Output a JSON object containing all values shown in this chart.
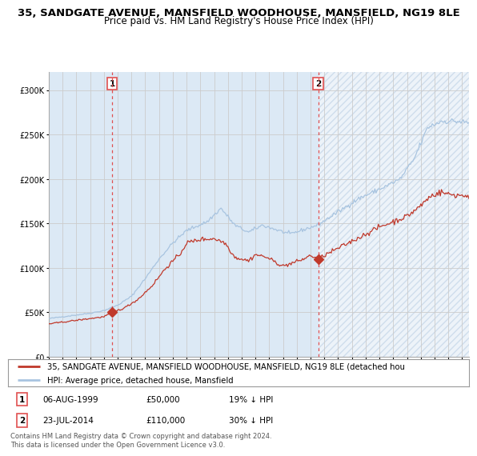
{
  "title_line1": "35, SANDGATE AVENUE, MANSFIELD WOODHOUSE, MANSFIELD, NG19 8LE",
  "title_line2": "Price paid vs. HM Land Registry's House Price Index (HPI)",
  "legend_line1": "35, SANDGATE AVENUE, MANSFIELD WOODHOUSE, MANSFIELD, NG19 8LE (detached hou",
  "legend_line2": "HPI: Average price, detached house, Mansfield",
  "annotation1_date": "06-AUG-1999",
  "annotation1_price": "£50,000",
  "annotation1_hpi": "19% ↓ HPI",
  "annotation2_date": "23-JUL-2014",
  "annotation2_price": "£110,000",
  "annotation2_hpi": "30% ↓ HPI",
  "sale1_year": 1999.6,
  "sale1_price": 50000,
  "sale2_year": 2014.55,
  "sale2_price": 110000,
  "ylabel_ticks": [
    0,
    50000,
    100000,
    150000,
    200000,
    250000,
    300000
  ],
  "ylabel_labels": [
    "£0",
    "£50K",
    "£100K",
    "£150K",
    "£200K",
    "£250K",
    "£300K"
  ],
  "xmin": 1995.0,
  "xmax": 2025.5,
  "ymin": 0,
  "ymax": 320000,
  "hpi_color": "#a8c4e0",
  "price_color": "#c0392b",
  "background_color": "#dce9f5",
  "grid_color": "#cccccc",
  "vline_color": "#e05050",
  "title_fontsize": 9.5,
  "subtitle_fontsize": 8.5,
  "tick_fontsize": 7,
  "footnote": "Contains HM Land Registry data © Crown copyright and database right 2024.\nThis data is licensed under the Open Government Licence v3.0."
}
